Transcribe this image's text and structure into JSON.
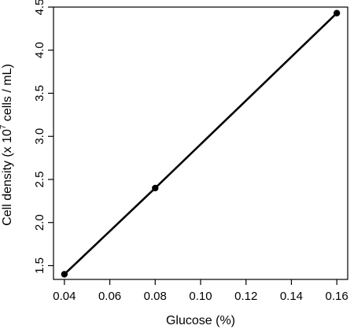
{
  "chart_data": {
    "type": "line",
    "title": "",
    "xlabel": "Glucose (%)",
    "ylabel_prefix": "Cell density  (x 10",
    "ylabel_exponent": "7",
    "ylabel_suffix": " cells / mL)",
    "x_ticks": [
      "0.04",
      "0.06",
      "0.08",
      "0.10",
      "0.12",
      "0.14",
      "0.16"
    ],
    "x_tick_values": [
      0.04,
      0.06,
      0.08,
      0.1,
      0.12,
      0.14,
      0.16
    ],
    "y_ticks": [
      "1.5",
      "2.0",
      "2.5",
      "3.0",
      "3.5",
      "4.0",
      "4.5"
    ],
    "y_tick_values": [
      1.5,
      2.0,
      2.5,
      3.0,
      3.5,
      4.0,
      4.5
    ],
    "xlim": [
      0.0352,
      0.1648
    ],
    "ylim": [
      1.34,
      4.5
    ],
    "grid": false,
    "series": [
      {
        "x": [
          0.04,
          0.08,
          0.16
        ],
        "y": [
          1.4,
          2.4,
          4.43
        ],
        "color": "#000000",
        "marker": "filled-circle"
      }
    ]
  }
}
